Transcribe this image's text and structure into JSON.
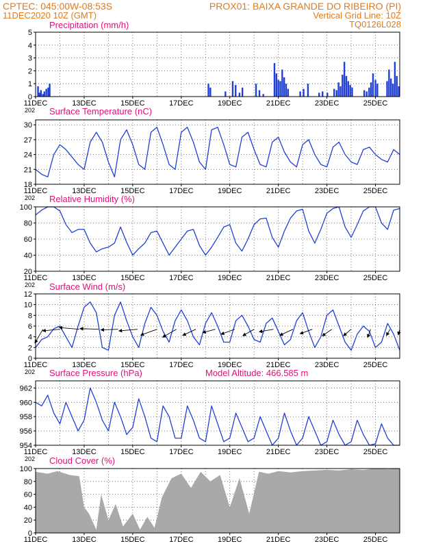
{
  "header": {
    "line1_left": "CPTEC:  045:00W-08:53S",
    "line1_right": "PROX01: BAIXA GRANDE DO RIBEIRO (PI)",
    "line2_left": "11DEC2020 10Z (GMT)",
    "line2_right": "Vertical Grid Line: 10Z",
    "line3_right": "TQ0126L028"
  },
  "colors": {
    "header": "#e07a1c",
    "panel_title": "#e0107a",
    "series": "#1f3fd6",
    "cloud_fill": "#a9a9a9",
    "axis": "#000000",
    "grid": "#555555"
  },
  "x_axis": {
    "start": "11DEC2020 10Z",
    "end": "26DEC2020 10Z",
    "tick_labels": [
      "11DEC",
      "13DEC",
      "15DEC",
      "17DEC",
      "19DEC",
      "21DEC",
      "23DEC",
      "25DEC"
    ],
    "tick_days": [
      0,
      2,
      4,
      6,
      8,
      10,
      12,
      14
    ],
    "year_stub": "202"
  },
  "chart_data": [
    {
      "type": "bar",
      "title": "Precipitation (mm/h)",
      "ylim": [
        0,
        5
      ],
      "yticks": [
        0,
        1,
        2,
        3,
        4,
        5
      ],
      "grid": true,
      "x": [
        0.1,
        0.16,
        0.22,
        0.3,
        0.36,
        0.44,
        0.52,
        0.58,
        7.12,
        7.2,
        7.82,
        8.12,
        8.24,
        8.4,
        8.52,
        9.08,
        9.22,
        9.38,
        9.84,
        9.92,
        10.0,
        10.08,
        10.16,
        10.24,
        10.32,
        10.4,
        10.9,
        11.04,
        11.22,
        11.68,
        11.82,
        12.02,
        12.3,
        12.4,
        12.48,
        12.56,
        12.64,
        12.72,
        12.8,
        12.88,
        12.96,
        13.04,
        13.54,
        13.64,
        13.74,
        13.82,
        13.9,
        14.0,
        14.08,
        14.48,
        14.56,
        14.64,
        14.72,
        14.8,
        14.88,
        14.96
      ],
      "values": [
        0.8,
        0.3,
        0.5,
        0.2,
        0.4,
        0.6,
        0.7,
        1.0,
        1.0,
        0.7,
        0.4,
        1.2,
        0.9,
        0.3,
        0.7,
        1.0,
        0.5,
        0.2,
        2.6,
        1.8,
        1.3,
        1.2,
        2.1,
        1.5,
        1.0,
        0.6,
        0.4,
        0.6,
        1.0,
        0.3,
        0.4,
        0.3,
        0.6,
        0.5,
        1.1,
        0.8,
        1.7,
        2.7,
        1.6,
        1.2,
        0.9,
        0.7,
        0.5,
        0.4,
        0.7,
        1.1,
        1.8,
        1.3,
        1.0,
        1.2,
        2.1,
        1.4,
        1.0,
        2.7,
        1.6,
        0.8
      ]
    },
    {
      "type": "line",
      "title": "Surface Temperature (nC)",
      "ylim": [
        18,
        31
      ],
      "yticks": [
        18,
        21,
        24,
        27,
        30
      ],
      "grid": true,
      "x": [
        0,
        0.25,
        0.5,
        0.75,
        1,
        1.25,
        1.5,
        1.75,
        2,
        2.25,
        2.5,
        2.75,
        3,
        3.25,
        3.5,
        3.75,
        4,
        4.25,
        4.5,
        4.75,
        5,
        5.25,
        5.5,
        5.75,
        6,
        6.25,
        6.5,
        6.75,
        7,
        7.25,
        7.5,
        7.75,
        8,
        8.25,
        8.5,
        8.75,
        9,
        9.25,
        9.5,
        9.75,
        10,
        10.25,
        10.5,
        10.75,
        11,
        11.25,
        11.5,
        11.75,
        12,
        12.25,
        12.5,
        12.75,
        13,
        13.25,
        13.5,
        13.75,
        14,
        14.25,
        14.5,
        14.75,
        15
      ],
      "values": [
        21,
        20,
        19.5,
        24,
        26,
        25,
        23.5,
        22,
        21,
        26.5,
        28.5,
        26.5,
        22.5,
        19.5,
        27,
        29,
        26,
        22,
        21,
        28.5,
        29.5,
        26,
        22,
        21,
        28.5,
        29.5,
        26.5,
        22.5,
        21,
        29,
        29.5,
        26,
        22,
        21.5,
        27.5,
        28.5,
        25,
        22,
        21.5,
        26.5,
        27.5,
        24.5,
        22.5,
        21.5,
        26,
        27,
        24,
        22,
        21.5,
        25.5,
        26.5,
        24,
        22.5,
        22,
        25,
        25.5,
        24,
        23,
        22.5,
        25,
        24
      ]
    },
    {
      "type": "line",
      "title": "Relative Humidity (%)",
      "ylim": [
        20,
        100
      ],
      "yticks": [
        20,
        40,
        60,
        80,
        100
      ],
      "grid": true,
      "x": [
        0,
        0.25,
        0.5,
        0.75,
        1,
        1.25,
        1.5,
        1.75,
        2,
        2.25,
        2.5,
        2.75,
        3,
        3.25,
        3.5,
        3.75,
        4,
        4.25,
        4.5,
        4.75,
        5,
        5.25,
        5.5,
        5.75,
        6,
        6.25,
        6.5,
        6.75,
        7,
        7.25,
        7.5,
        7.75,
        8,
        8.25,
        8.5,
        8.75,
        9,
        9.25,
        9.5,
        9.75,
        10,
        10.25,
        10.5,
        10.75,
        11,
        11.25,
        11.5,
        11.75,
        12,
        12.25,
        12.5,
        12.75,
        13,
        13.25,
        13.5,
        13.75,
        14,
        14.25,
        14.5,
        14.75,
        15
      ],
      "values": [
        90,
        96,
        100,
        100,
        95,
        78,
        68,
        72,
        72,
        55,
        44,
        48,
        50,
        55,
        75,
        56,
        40,
        48,
        55,
        68,
        70,
        55,
        40,
        50,
        60,
        70,
        72,
        52,
        40,
        50,
        62,
        75,
        78,
        55,
        45,
        60,
        78,
        85,
        86,
        62,
        50,
        70,
        86,
        95,
        97,
        70,
        55,
        72,
        92,
        98,
        100,
        75,
        62,
        78,
        95,
        100,
        100,
        80,
        72,
        96,
        98
      ]
    },
    {
      "type": "line",
      "title": "Surface Wind (m/s)",
      "ylim": [
        0,
        12
      ],
      "yticks": [
        0,
        2,
        4,
        6,
        8,
        10,
        12
      ],
      "grid": true,
      "x": [
        0,
        0.25,
        0.5,
        0.75,
        1,
        1.25,
        1.5,
        1.75,
        2,
        2.25,
        2.5,
        2.75,
        3,
        3.25,
        3.5,
        3.75,
        4,
        4.25,
        4.5,
        4.75,
        5,
        5.25,
        5.5,
        5.75,
        6,
        6.25,
        6.5,
        6.75,
        7,
        7.25,
        7.5,
        7.75,
        8,
        8.25,
        8.5,
        8.75,
        9,
        9.25,
        9.5,
        9.75,
        10,
        10.25,
        10.5,
        10.75,
        11,
        11.25,
        11.5,
        11.75,
        12,
        12.25,
        12.5,
        12.75,
        13,
        13.25,
        13.5,
        13.75,
        14,
        14.25,
        14.5,
        14.75,
        15
      ],
      "values": [
        2,
        3.5,
        4,
        5.5,
        6,
        4,
        2,
        6,
        9.5,
        10.5,
        8.5,
        2,
        1.5,
        8,
        10.5,
        7,
        4,
        2,
        6.5,
        9.5,
        8,
        5,
        3,
        7,
        9,
        7,
        4,
        2.5,
        6.5,
        8.5,
        6,
        3,
        3,
        7,
        8,
        6,
        3.5,
        3,
        6.5,
        7.5,
        5,
        2.5,
        3.5,
        7,
        8.5,
        5,
        2,
        4,
        8,
        9,
        6,
        3,
        1.5,
        4.5,
        6,
        5,
        2,
        3,
        6.5,
        4.5,
        1.5
      ],
      "wind_vectors": {
        "x": [
          0.3,
          1.0,
          1.8,
          2.6,
          3.4,
          4.2,
          5.0,
          5.8,
          6.6,
          7.4,
          8.2,
          9.0,
          9.8,
          10.6,
          11.4,
          12.2,
          13.0,
          13.8,
          14.6,
          15.0
        ],
        "direction_deg": [
          -150,
          -95,
          -85,
          -88,
          -92,
          -95,
          -110,
          -120,
          -115,
          -105,
          -110,
          -120,
          -100,
          -115,
          -110,
          -125,
          -130,
          -160,
          -150,
          -165
        ],
        "speed": [
          5.5,
          6,
          7,
          6.5,
          6,
          6.5,
          6,
          5.5,
          5,
          4.5,
          5,
          4.5,
          5,
          5,
          4.5,
          4,
          3.5,
          3,
          2.5,
          2
        ]
      }
    },
    {
      "type": "line",
      "title": "Surface Pressure (hPa)",
      "subtitle": "Model Altitude: 466.585 m",
      "ylim": [
        954,
        963
      ],
      "yticks": [
        954,
        956,
        958,
        960,
        962
      ],
      "grid": true,
      "x": [
        0,
        0.25,
        0.5,
        0.75,
        1,
        1.25,
        1.5,
        1.75,
        2,
        2.25,
        2.5,
        2.75,
        3,
        3.25,
        3.5,
        3.75,
        4,
        4.25,
        4.5,
        4.75,
        5,
        5.25,
        5.5,
        5.75,
        6,
        6.25,
        6.5,
        6.75,
        7,
        7.25,
        7.5,
        7.75,
        8,
        8.25,
        8.5,
        8.75,
        9,
        9.25,
        9.5,
        9.75,
        10,
        10.25,
        10.5,
        10.75,
        11,
        11.25,
        11.5,
        11.75,
        12,
        12.25,
        12.5,
        12.75,
        13,
        13.25,
        13.5,
        13.75,
        14,
        14.25,
        14.5,
        14.75,
        15
      ],
      "values": [
        960,
        959.5,
        961,
        958.5,
        957,
        960,
        958,
        956,
        957.5,
        962,
        960,
        957.5,
        956,
        960,
        958,
        955.5,
        956.5,
        960.5,
        958,
        955,
        954.5,
        959.5,
        958,
        955,
        955,
        959.5,
        957.5,
        955,
        954.5,
        959.5,
        957,
        954.5,
        955,
        958.5,
        956.5,
        954.5,
        955,
        958,
        956,
        954,
        955,
        958.5,
        956,
        954,
        955,
        958,
        956,
        954,
        954.5,
        957.5,
        955.5,
        954,
        954.5,
        957.5,
        955.5,
        954,
        954.2,
        957,
        955,
        954,
        954
      ]
    },
    {
      "type": "area",
      "title": "Cloud Cover (%)",
      "ylim": [
        0,
        100
      ],
      "yticks": [
        0,
        20,
        40,
        60,
        80,
        100
      ],
      "grid": true,
      "x": [
        0,
        0.5,
        0.9,
        1.4,
        1.8,
        2.0,
        2.2,
        2.5,
        2.7,
        3.0,
        3.3,
        3.6,
        4.0,
        4.3,
        4.6,
        4.9,
        5.2,
        5.6,
        6.0,
        6.4,
        6.8,
        7.2,
        7.6,
        8.0,
        8.4,
        8.8,
        9.2,
        9.6,
        10.0,
        10.5,
        11.0,
        11.5,
        12.0,
        12.5,
        13.0,
        13.5,
        14.0,
        14.5,
        15.0
      ],
      "values": [
        95,
        92,
        96,
        90,
        88,
        40,
        30,
        5,
        60,
        20,
        45,
        10,
        30,
        5,
        25,
        8,
        55,
        85,
        92,
        70,
        95,
        80,
        90,
        40,
        85,
        30,
        95,
        92,
        96,
        94,
        96,
        97,
        98,
        97,
        99,
        98,
        100,
        99,
        100
      ]
    }
  ]
}
